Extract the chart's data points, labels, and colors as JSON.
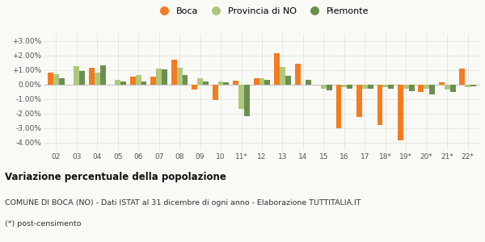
{
  "years": [
    "02",
    "03",
    "04",
    "05",
    "06",
    "07",
    "08",
    "09",
    "10",
    "11*",
    "12",
    "13",
    "14",
    "15",
    "16",
    "17",
    "18*",
    "19*",
    "20*",
    "21*",
    "22*"
  ],
  "boca": [
    0.85,
    0.0,
    1.15,
    0.0,
    0.55,
    0.55,
    1.75,
    -0.35,
    -1.05,
    0.3,
    0.45,
    2.15,
    1.45,
    0.0,
    -3.0,
    -2.2,
    -2.8,
    -3.85,
    -0.5,
    0.15,
    1.1
  ],
  "provincia": [
    0.75,
    1.3,
    0.85,
    0.35,
    0.65,
    1.1,
    1.15,
    0.45,
    0.2,
    -1.65,
    0.45,
    1.25,
    0.0,
    -0.25,
    -0.15,
    -0.25,
    -0.15,
    -0.25,
    -0.25,
    -0.35,
    -0.15
  ],
  "piemonte": [
    0.45,
    0.95,
    1.35,
    0.25,
    0.25,
    1.05,
    0.65,
    0.2,
    0.15,
    -2.15,
    0.35,
    0.6,
    0.35,
    -0.4,
    -0.25,
    -0.3,
    -0.25,
    -0.45,
    -0.65,
    -0.5,
    -0.1
  ],
  "color_boca": "#f47c20",
  "color_provincia": "#aec87a",
  "color_piemonte": "#6b8f50",
  "title_bold": "Variazione percentuale della popolazione",
  "subtitle": "COMUNE DI BOCA (NO) - Dati ISTAT al 31 dicembre di ogni anno - Elaborazione TUTTITALIA.IT",
  "footnote": "(*) post-censimento",
  "ylim": [
    -4.5,
    3.5
  ],
  "yticks": [
    -4.0,
    -3.0,
    -2.0,
    -1.0,
    0.0,
    1.0,
    2.0,
    3.0
  ],
  "background_color": "#f9f9f6",
  "grid_color": "#e0e0da"
}
